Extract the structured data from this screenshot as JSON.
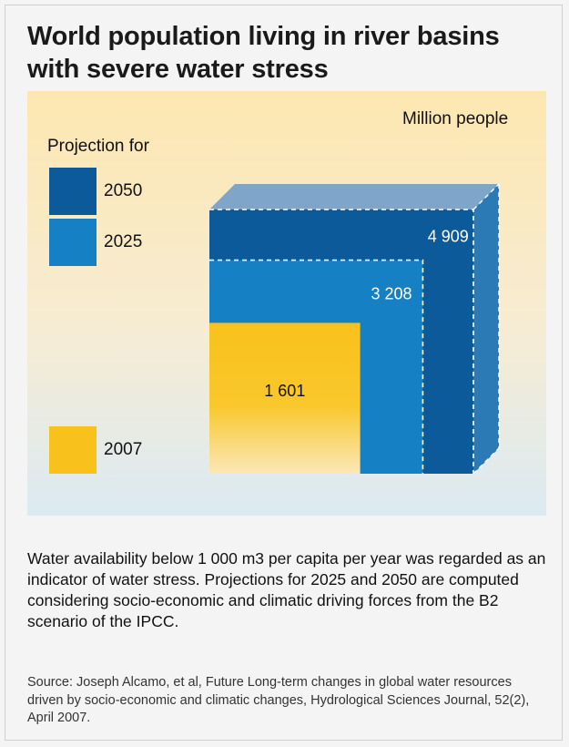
{
  "title": "World population living in river basins with severe water stress",
  "chart_data": {
    "type": "area",
    "unit": "Million people",
    "legend_title": "Projection for",
    "series": [
      {
        "name": "2050",
        "value": 4909,
        "label": "4 909",
        "color": "#0d5a9b"
      },
      {
        "name": "2025",
        "value": 3208,
        "label": "3 208",
        "color": "#1580c3"
      },
      {
        "name": "2007",
        "value": 1601,
        "label": "1 601",
        "color": "#f9c11b"
      }
    ]
  },
  "notes": {
    "text": "Water availability below 1 000 m3 per capita per year was regarded as an indicator of water stress. Projections for 2025 and 2050 are computed considering socio-economic and climatic driving forces from the B2 scenario of the IPCC.",
    "source": "Source: Joseph Alcamo, et al, Future Long-term changes in global water resources driven by socio-economic and climatic changes, Hydrological Sciences Journal, 52(2), April 2007."
  }
}
